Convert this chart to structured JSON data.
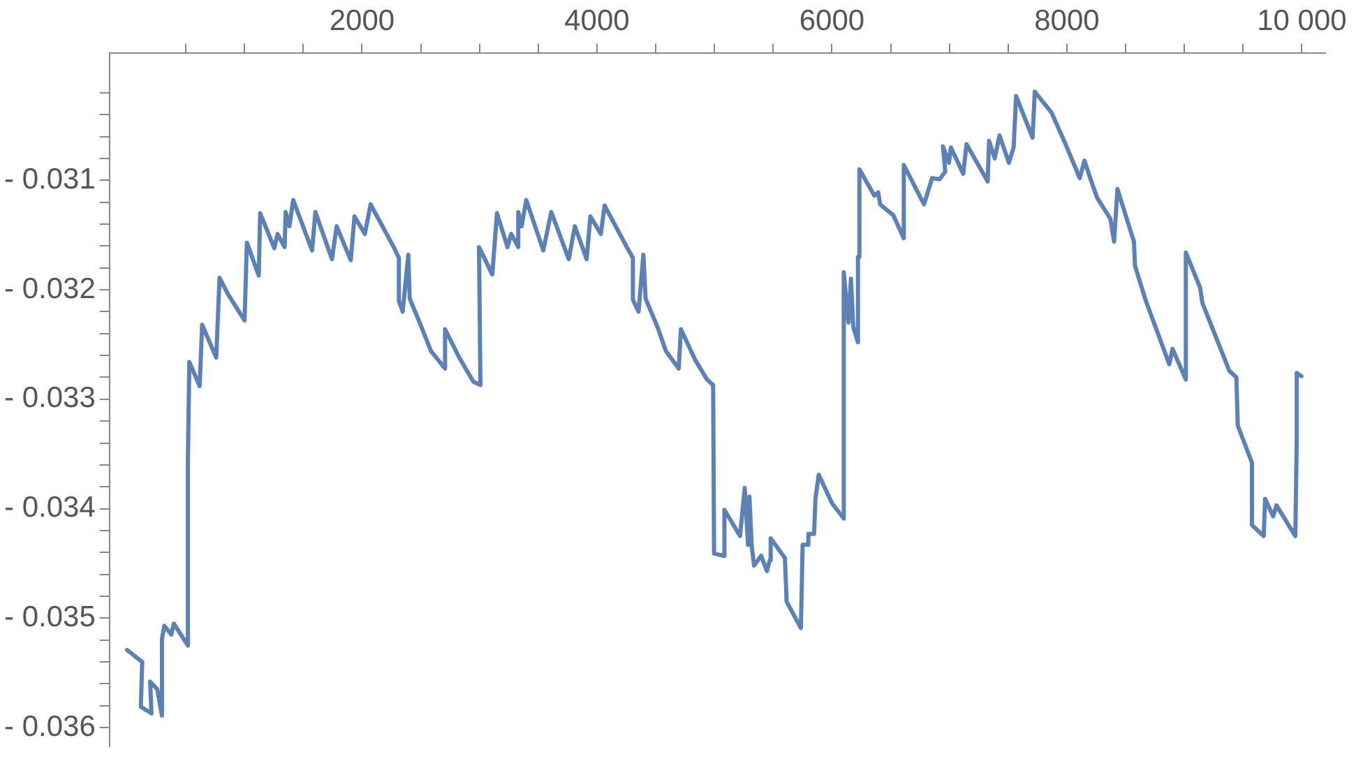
{
  "chart_data": {
    "type": "line",
    "xlim": [
      -150,
      10200
    ],
    "ylim": [
      -0.03617,
      -0.02984
    ],
    "grid": false,
    "legend": false,
    "marker": "none",
    "line_style": "solid",
    "xticks": [
      {
        "value": 500,
        "label": null
      },
      {
        "value": 1000,
        "label": null
      },
      {
        "value": 1500,
        "label": null
      },
      {
        "value": 2000,
        "label": "2000"
      },
      {
        "value": 2500,
        "label": null
      },
      {
        "value": 3000,
        "label": null
      },
      {
        "value": 3500,
        "label": null
      },
      {
        "value": 4000,
        "label": "4000"
      },
      {
        "value": 4500,
        "label": null
      },
      {
        "value": 5000,
        "label": null
      },
      {
        "value": 5500,
        "label": null
      },
      {
        "value": 6000,
        "label": "6000"
      },
      {
        "value": 6500,
        "label": null
      },
      {
        "value": 7000,
        "label": null
      },
      {
        "value": 7500,
        "label": null
      },
      {
        "value": 8000,
        "label": "8000"
      },
      {
        "value": 8500,
        "label": null
      },
      {
        "value": 9000,
        "label": null
      },
      {
        "value": 9500,
        "label": null
      },
      {
        "value": 10000,
        "label": "10 000"
      }
    ],
    "yticks": [
      {
        "value": -0.036,
        "label": "- 0.036"
      },
      {
        "value": -0.0358,
        "label": null
      },
      {
        "value": -0.0356,
        "label": null
      },
      {
        "value": -0.0354,
        "label": null
      },
      {
        "value": -0.0352,
        "label": null
      },
      {
        "value": -0.035,
        "label": "- 0.035"
      },
      {
        "value": -0.0348,
        "label": null
      },
      {
        "value": -0.0346,
        "label": null
      },
      {
        "value": -0.0344,
        "label": null
      },
      {
        "value": -0.0342,
        "label": null
      },
      {
        "value": -0.034,
        "label": "- 0.034"
      },
      {
        "value": -0.0338,
        "label": null
      },
      {
        "value": -0.0336,
        "label": null
      },
      {
        "value": -0.0334,
        "label": null
      },
      {
        "value": -0.0332,
        "label": null
      },
      {
        "value": -0.033,
        "label": "- 0.033"
      },
      {
        "value": -0.0328,
        "label": null
      },
      {
        "value": -0.0326,
        "label": null
      },
      {
        "value": -0.0324,
        "label": null
      },
      {
        "value": -0.0322,
        "label": null
      },
      {
        "value": -0.032,
        "label": "- 0.032"
      },
      {
        "value": -0.0318,
        "label": null
      },
      {
        "value": -0.0316,
        "label": null
      },
      {
        "value": -0.0314,
        "label": null
      },
      {
        "value": -0.0312,
        "label": null
      },
      {
        "value": -0.031,
        "label": "- 0.031"
      },
      {
        "value": -0.0308,
        "label": null
      },
      {
        "value": -0.0306,
        "label": null
      },
      {
        "value": -0.0304,
        "label": null
      },
      {
        "value": -0.0302,
        "label": null
      }
    ],
    "series": [
      {
        "color": "#5e81b5",
        "x": [
          0,
          129,
          117,
          208,
          196,
          257,
          297,
          297,
          317,
          377,
          398,
          518,
          518,
          530,
          618,
          639,
          759,
          787,
          859,
          1000,
          1020,
          1121,
          1133,
          1253,
          1281,
          1341,
          1350,
          1382,
          1414,
          1575,
          1603,
          1744,
          1784,
          1904,
          1936,
          2024,
          2073,
          2265,
          2314,
          2314,
          2346,
          2394,
          2406,
          2506,
          2587,
          2707,
          2707,
          2828,
          2948,
          3008,
          2996,
          3109,
          3149,
          3238,
          3270,
          3330,
          3330,
          3358,
          3398,
          3543,
          3611,
          3760,
          3812,
          3912,
          3944,
          4033,
          4065,
          4254,
          4306,
          4306,
          4354,
          4395,
          4414,
          4515,
          4587,
          4696,
          4715,
          4836,
          4937,
          4989,
          4997,
          5077,
          5085,
          5218,
          5258,
          5286,
          5298,
          5318,
          5338,
          5398,
          5447,
          5471,
          5479,
          5600,
          5615,
          5736,
          5751,
          5800,
          5800,
          5848,
          5860,
          5888,
          6001,
          6101,
          6101,
          6141,
          6162,
          6182,
          6222,
          6222,
          6234,
          6234,
          6362,
          6394,
          6411,
          6523,
          6612,
          6612,
          6784,
          6853,
          6917,
          6965,
          6945,
          6997,
          7013,
          7118,
          7146,
          7326,
          7338,
          7386,
          7427,
          7507,
          7547,
          7568,
          7708,
          7727,
          7869,
          7989,
          8110,
          8150,
          8202,
          8258,
          8370,
          8402,
          8431,
          8571,
          8580,
          8672,
          8872,
          8900,
          9013,
          9013,
          9134,
          9154,
          9383,
          9443,
          9455,
          9576,
          9576,
          9676,
          9688,
          9756,
          9785,
          9945,
          9957,
          9957,
          9997
        ],
        "values": [
          -0.03529,
          -0.0354,
          -0.03581,
          -0.03587,
          -0.03558,
          -0.03565,
          -0.03589,
          -0.03519,
          -0.03507,
          -0.03515,
          -0.03505,
          -0.03525,
          -0.03354,
          -0.03266,
          -0.03288,
          -0.03232,
          -0.03262,
          -0.03189,
          -0.03204,
          -0.03228,
          -0.03157,
          -0.03187,
          -0.0313,
          -0.03162,
          -0.03149,
          -0.03161,
          -0.03129,
          -0.03142,
          -0.03118,
          -0.03164,
          -0.03129,
          -0.03172,
          -0.03142,
          -0.03173,
          -0.03133,
          -0.03149,
          -0.03122,
          -0.0316,
          -0.03171,
          -0.0321,
          -0.0322,
          -0.03168,
          -0.03208,
          -0.03234,
          -0.03256,
          -0.03272,
          -0.03236,
          -0.03262,
          -0.03284,
          -0.03287,
          -0.03161,
          -0.03186,
          -0.0313,
          -0.03161,
          -0.03149,
          -0.03161,
          -0.03129,
          -0.03142,
          -0.03118,
          -0.03164,
          -0.03129,
          -0.03172,
          -0.03142,
          -0.03172,
          -0.03133,
          -0.03149,
          -0.03123,
          -0.03161,
          -0.03171,
          -0.03209,
          -0.0322,
          -0.03168,
          -0.03208,
          -0.03234,
          -0.03256,
          -0.03272,
          -0.03236,
          -0.03264,
          -0.03282,
          -0.03287,
          -0.03441,
          -0.03443,
          -0.03401,
          -0.03425,
          -0.03381,
          -0.03433,
          -0.03389,
          -0.03435,
          -0.03452,
          -0.03443,
          -0.03457,
          -0.03447,
          -0.03427,
          -0.03445,
          -0.03485,
          -0.03509,
          -0.03433,
          -0.03433,
          -0.03423,
          -0.03423,
          -0.03391,
          -0.03369,
          -0.03395,
          -0.03409,
          -0.03184,
          -0.0323,
          -0.0319,
          -0.03234,
          -0.03248,
          -0.0317,
          -0.0317,
          -0.0309,
          -0.03114,
          -0.03111,
          -0.03122,
          -0.03132,
          -0.03153,
          -0.03086,
          -0.03122,
          -0.03098,
          -0.03099,
          -0.03092,
          -0.03069,
          -0.03084,
          -0.0307,
          -0.03094,
          -0.03067,
          -0.03101,
          -0.03064,
          -0.0308,
          -0.03059,
          -0.03084,
          -0.0307,
          -0.03023,
          -0.03061,
          -0.03019,
          -0.03038,
          -0.03067,
          -0.03098,
          -0.03082,
          -0.03099,
          -0.03116,
          -0.03135,
          -0.03156,
          -0.03108,
          -0.03156,
          -0.03178,
          -0.0321,
          -0.03268,
          -0.03254,
          -0.03282,
          -0.03166,
          -0.03198,
          -0.03212,
          -0.03274,
          -0.0328,
          -0.03324,
          -0.03358,
          -0.03415,
          -0.03425,
          -0.03391,
          -0.03407,
          -0.03397,
          -0.03425,
          -0.03338,
          -0.03276,
          -0.03279
        ]
      }
    ]
  }
}
